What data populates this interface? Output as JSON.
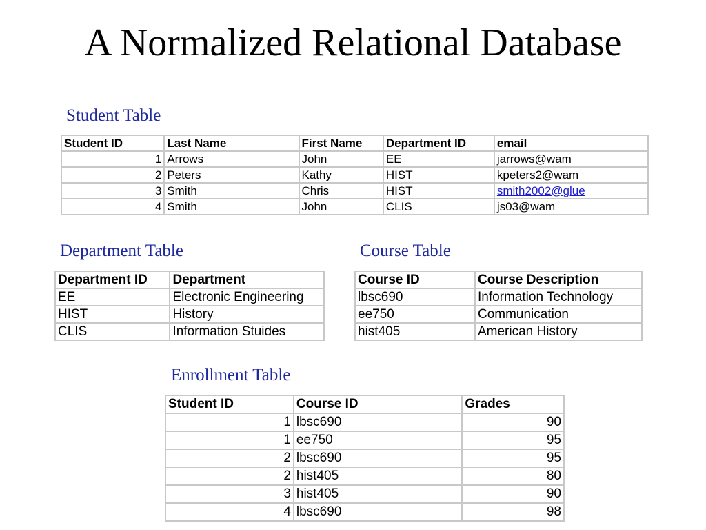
{
  "title": "A Normalized Relational Database",
  "colors": {
    "heading": "#1f2aa0",
    "link": "#1a1ad0",
    "grid": "#c8c8c8"
  },
  "student_table": {
    "heading": "Student Table",
    "columns": [
      "Student ID",
      "Last Name",
      "First Name",
      "Department ID",
      "email"
    ],
    "rows": [
      [
        "1",
        "Arrows",
        "John",
        "EE",
        "jarrows@wam"
      ],
      [
        "2",
        "Peters",
        "Kathy",
        "HIST",
        "kpeters2@wam"
      ],
      [
        "3",
        "Smith",
        "Chris",
        "HIST",
        "smith2002@glue"
      ],
      [
        "4",
        "Smith",
        "John",
        "CLIS",
        "js03@wam"
      ]
    ]
  },
  "department_table": {
    "heading": "Department Table",
    "columns": [
      "Department ID",
      "Department"
    ],
    "rows": [
      [
        "EE",
        "Electronic Engineering"
      ],
      [
        "HIST",
        "History"
      ],
      [
        "CLIS",
        "Information Stuides"
      ]
    ]
  },
  "course_table": {
    "heading": "Course Table",
    "columns": [
      "Course ID",
      "Course Description"
    ],
    "rows": [
      [
        "lbsc690",
        "Information Technology"
      ],
      [
        "ee750",
        "Communication"
      ],
      [
        "hist405",
        "American History"
      ]
    ]
  },
  "enrollment_table": {
    "heading": "Enrollment Table",
    "columns": [
      "Student ID",
      "Course ID",
      "Grades"
    ],
    "rows": [
      [
        "1",
        "lbsc690",
        "90"
      ],
      [
        "1",
        "ee750",
        "95"
      ],
      [
        "2",
        "lbsc690",
        "95"
      ],
      [
        "2",
        "hist405",
        "80"
      ],
      [
        "3",
        "hist405",
        "90"
      ],
      [
        "4",
        "lbsc690",
        "98"
      ]
    ]
  }
}
